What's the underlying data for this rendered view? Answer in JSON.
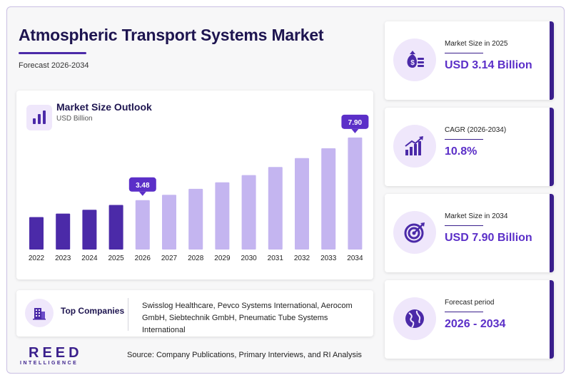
{
  "header": {
    "title": "Atmospheric Transport Systems Market",
    "subtitle": "Forecast 2026-2034"
  },
  "chart": {
    "title": "Market Size Outlook",
    "unit": "USD Billion"
  },
  "chart_data": {
    "type": "bar",
    "title": "Market Size Outlook",
    "ylabel": "USD Billion",
    "categories": [
      "2022",
      "2023",
      "2024",
      "2025",
      "2026",
      "2027",
      "2028",
      "2029",
      "2030",
      "2031",
      "2032",
      "2033",
      "2034"
    ],
    "values": [
      2.29,
      2.53,
      2.8,
      3.14,
      3.48,
      3.86,
      4.28,
      4.74,
      5.25,
      5.82,
      6.45,
      7.14,
      7.9
    ],
    "historical_count": 4,
    "callouts": [
      {
        "category": "2026",
        "label": "3.48"
      },
      {
        "category": "2034",
        "label": "7.90"
      }
    ],
    "ylim": [
      0,
      9.2
    ],
    "colors": {
      "historical": "#4b2aa8",
      "forecast": "#c4b5f0",
      "callout": "#5b2fc8"
    },
    "grid": false
  },
  "companies": {
    "label": "Top Companies",
    "text": "Swisslog Healthcare, Pevco Systems International, Aerocom GmbH, Siebtechnik GmbH, Pneumatic Tube Systems International"
  },
  "logo": {
    "main": "REED",
    "sub": "INTELLIGENCE"
  },
  "source": "Source: Company Publications, Primary Interviews, and RI Analysis",
  "stats": [
    {
      "label": "Market Size in 2025",
      "value": "USD 3.14 Billion",
      "icon": "money-bag-icon"
    },
    {
      "label": "CAGR (2026-2034)",
      "value": "10.8%",
      "icon": "growth-chart-icon"
    },
    {
      "label": "Market Size in 2034",
      "value": "USD 7.90 Billion",
      "icon": "target-icon"
    },
    {
      "label": "Forecast period",
      "value": "2026 - 2034",
      "icon": "globe-icon"
    }
  ]
}
